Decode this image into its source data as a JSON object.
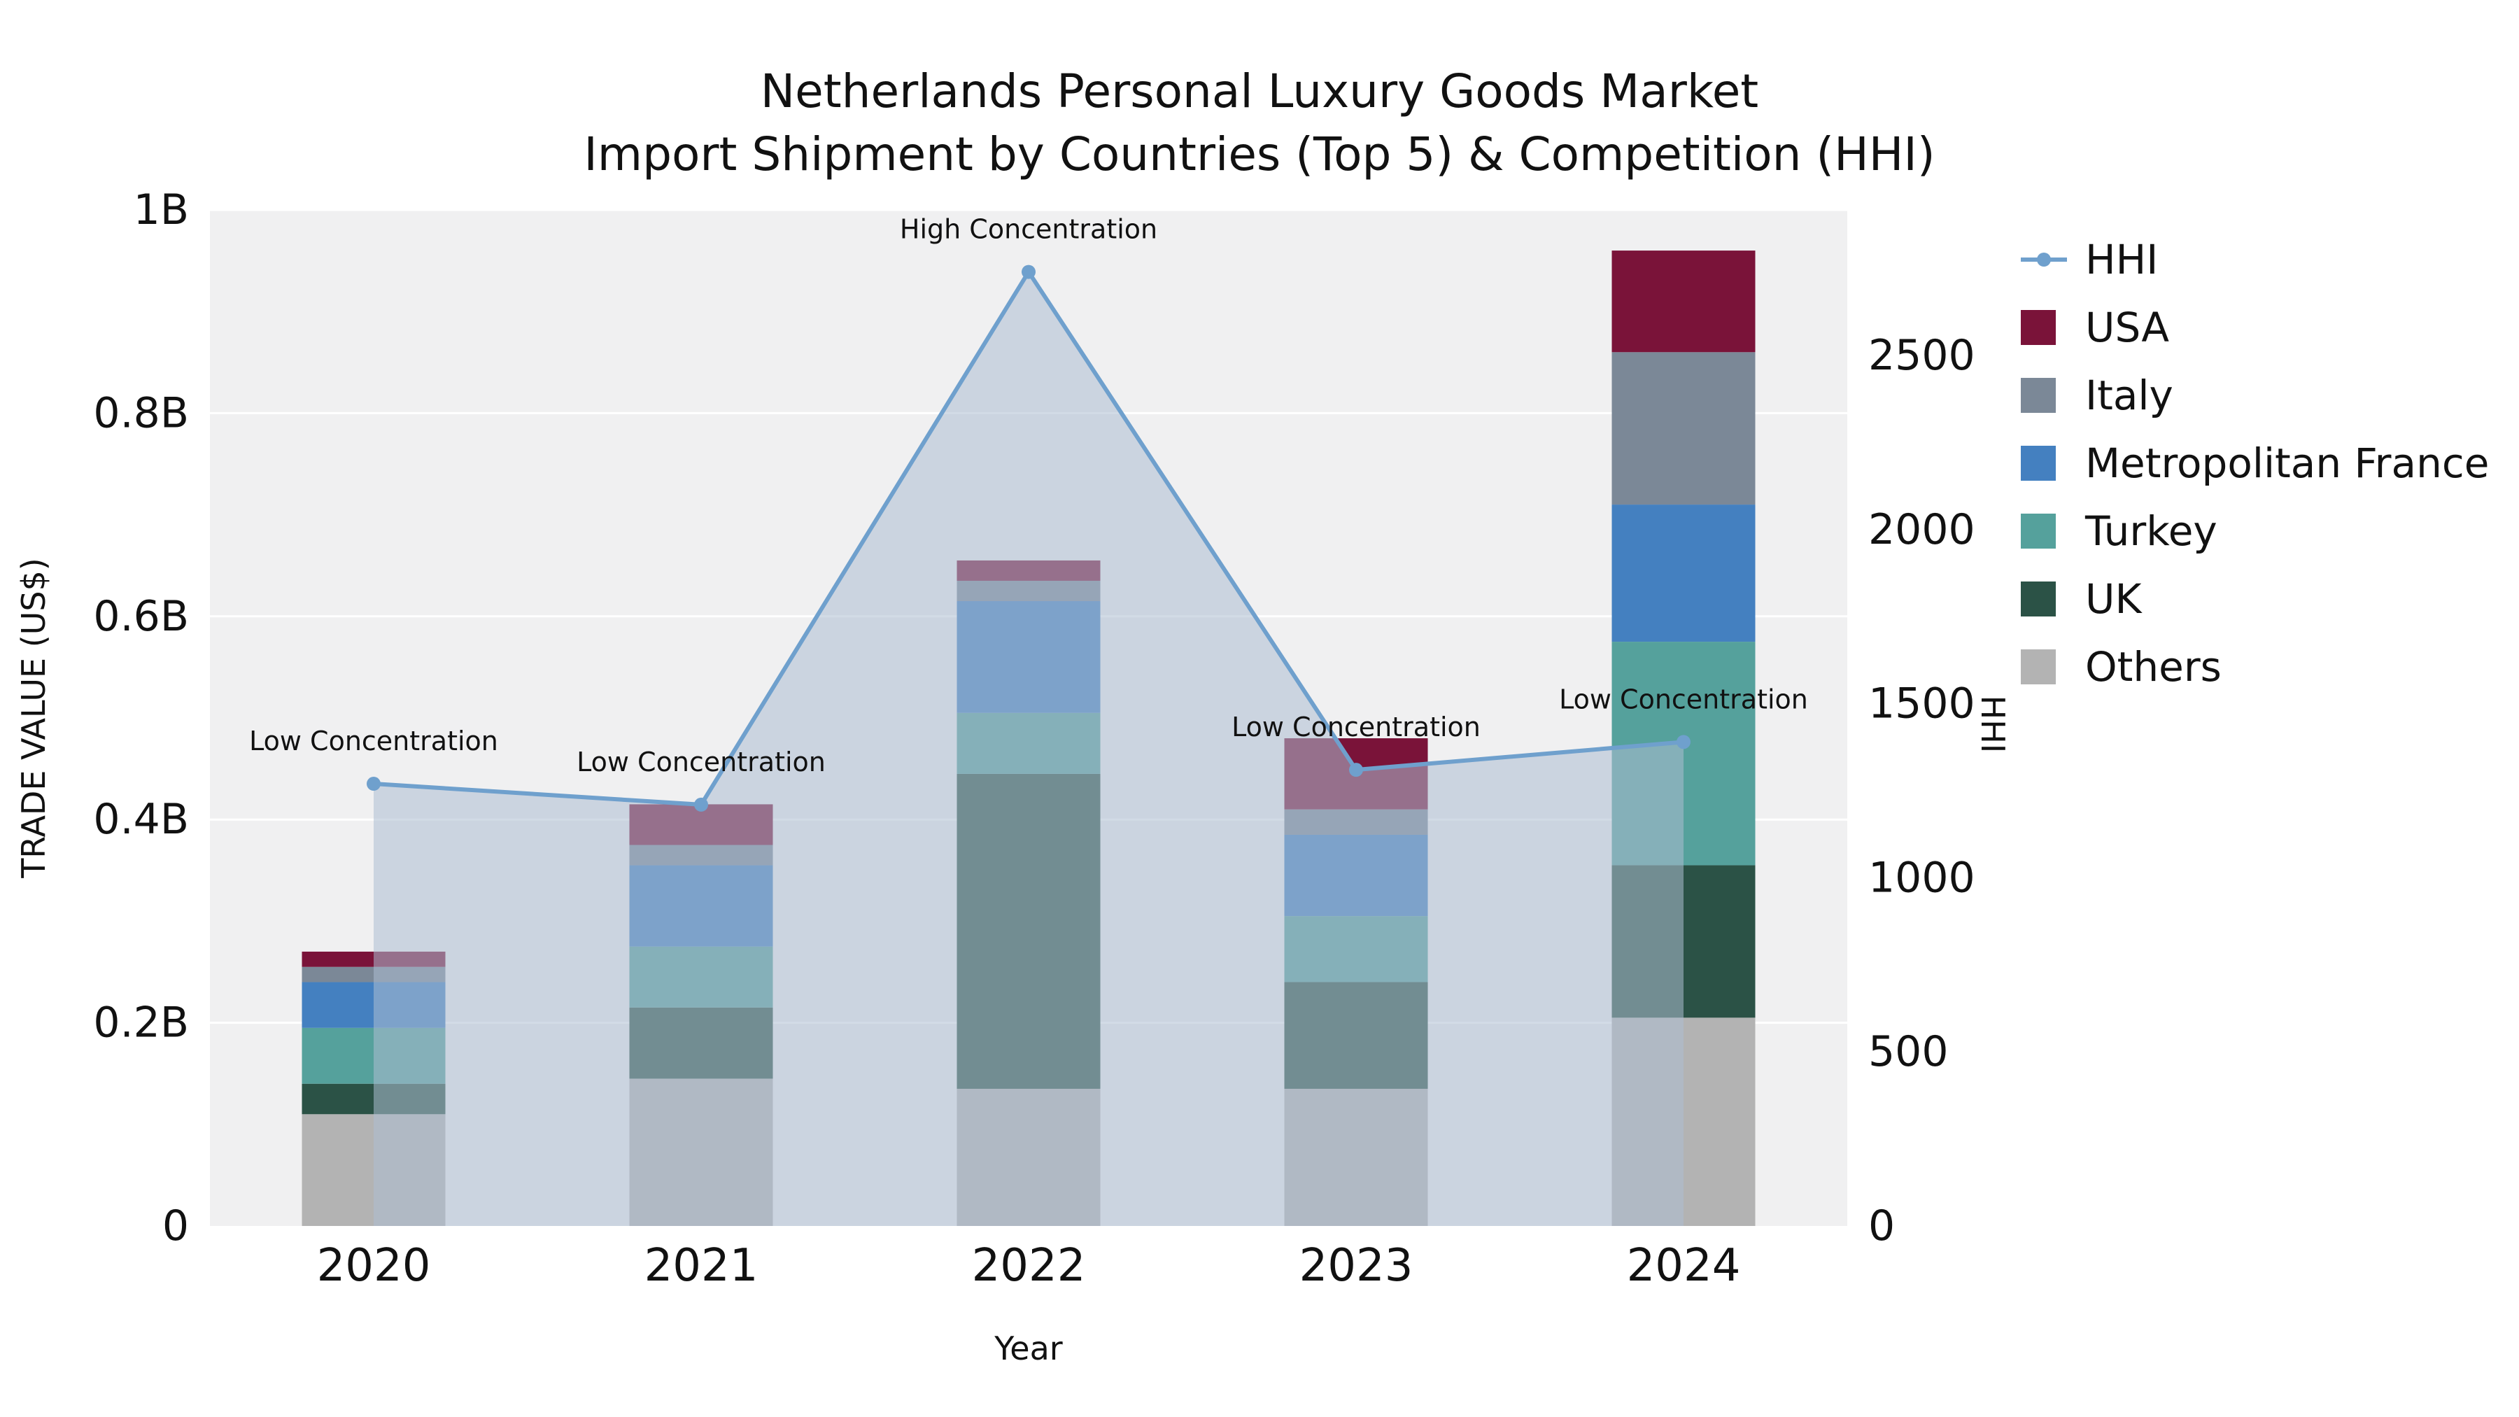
{
  "title": {
    "line1": "Netherlands Personal Luxury Goods Market",
    "line2": "Import Shipment by Countries (Top 5) & Competition (HHI)"
  },
  "axes": {
    "x_label": "Year",
    "y_left_label": "TRADE VALUE (US$)",
    "y_right_label": "HHI"
  },
  "chart_data": {
    "type": "bar",
    "subtype": "stacked-bars-with-hhi-line-area",
    "title": "Netherlands Personal Luxury Goods Market — Import Shipment by Countries (Top 5) & Competition (HHI)",
    "categories": [
      "2020",
      "2021",
      "2022",
      "2023",
      "2024"
    ],
    "bar_value_unit": "USD billions",
    "series": [
      {
        "name": "Others",
        "color": "#b3b3b3",
        "values": [
          0.11,
          0.145,
          0.135,
          0.135,
          0.205
        ]
      },
      {
        "name": "UK",
        "color": "#2b5246",
        "values": [
          0.03,
          0.07,
          0.31,
          0.105,
          0.15
        ]
      },
      {
        "name": "Turkey",
        "color": "#55a19c",
        "values": [
          0.055,
          0.06,
          0.06,
          0.065,
          0.22
        ]
      },
      {
        "name": "Metropolitan France",
        "color": "#4480c0",
        "values": [
          0.045,
          0.08,
          0.11,
          0.08,
          0.135
        ]
      },
      {
        "name": "Italy",
        "color": "#7b8897",
        "values": [
          0.015,
          0.02,
          0.02,
          0.025,
          0.15
        ]
      },
      {
        "name": "USA",
        "color": "#7a1339",
        "values": [
          0.015,
          0.04,
          0.02,
          0.07,
          0.1
        ]
      }
    ],
    "hhi": {
      "name": "HHI",
      "color": "#6fa0cd",
      "area_fill": "rgba(173,190,209,0.55)",
      "values": [
        1270,
        1210,
        2740,
        1310,
        1390
      ]
    },
    "annotations": [
      {
        "category": "2020",
        "label": "Low Concentration"
      },
      {
        "category": "2021",
        "label": "Low Concentration"
      },
      {
        "category": "2022",
        "label": "High Concentration"
      },
      {
        "category": "2023",
        "label": "Low Concentration"
      },
      {
        "category": "2024",
        "label": "Low Concentration"
      }
    ],
    "y_left": {
      "lim": [
        0,
        1.0
      ],
      "ticks": [
        {
          "v": 0,
          "label": "0"
        },
        {
          "v": 0.2,
          "label": "0.2B"
        },
        {
          "v": 0.4,
          "label": "0.4B"
        },
        {
          "v": 0.6,
          "label": "0.6B"
        },
        {
          "v": 0.8,
          "label": "0.8B"
        },
        {
          "v": 1.0,
          "label": "1B"
        }
      ]
    },
    "y_right": {
      "lim": [
        0,
        2918
      ],
      "ticks": [
        {
          "v": 0,
          "label": "0"
        },
        {
          "v": 500,
          "label": "500"
        },
        {
          "v": 1000,
          "label": "1000"
        },
        {
          "v": 1500,
          "label": "1500"
        },
        {
          "v": 2000,
          "label": "2000"
        },
        {
          "v": 2500,
          "label": "2500"
        }
      ]
    },
    "legend": [
      {
        "name": "HHI",
        "type": "line",
        "color": "#6fa0cd"
      },
      {
        "name": "USA",
        "type": "swatch",
        "color": "#7a1339"
      },
      {
        "name": "Italy",
        "type": "swatch",
        "color": "#7b8897"
      },
      {
        "name": "Metropolitan France",
        "type": "swatch",
        "color": "#4480c0"
      },
      {
        "name": "Turkey",
        "type": "swatch",
        "color": "#55a19c"
      },
      {
        "name": "UK",
        "type": "swatch",
        "color": "#2b5246"
      },
      {
        "name": "Others",
        "type": "swatch",
        "color": "#b3b3b3"
      }
    ],
    "layout": {
      "plot_background": "#f0f0f1",
      "gridlines": "white-horizontal-major",
      "legend_position": "right"
    }
  }
}
